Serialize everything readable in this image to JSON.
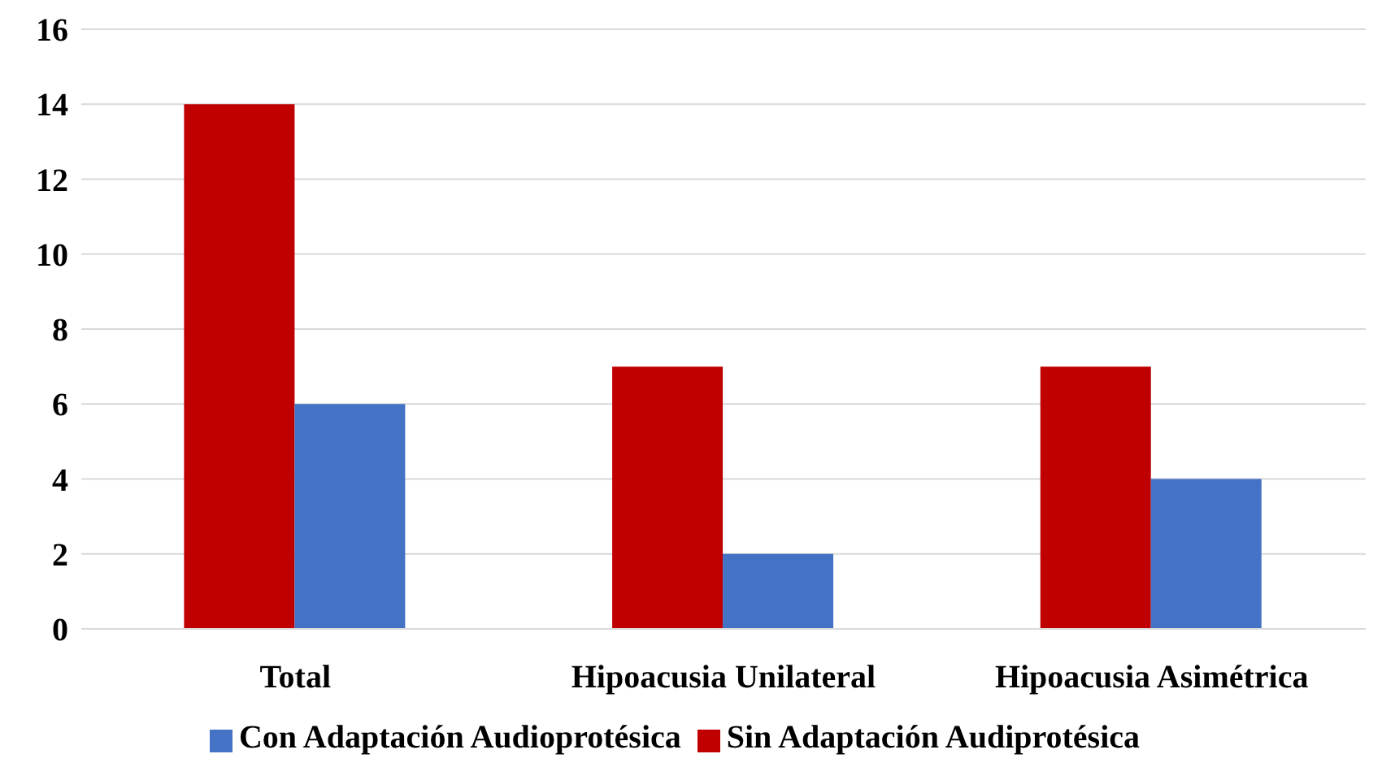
{
  "chart_data": {
    "type": "bar",
    "categories": [
      "Total",
      "Hipoacusia Unilateral",
      "Hipoacusia Asimétrica"
    ],
    "series": [
      {
        "name": "Sin Adaptación Audiprotésica",
        "color": "#c00000",
        "values": [
          14,
          7,
          7
        ]
      },
      {
        "name": "Con Adaptación Audioprotésica",
        "color": "#4472c4",
        "values": [
          6,
          2,
          4
        ]
      }
    ],
    "ylim": [
      0,
      16
    ],
    "yticks": [
      0,
      2,
      4,
      6,
      8,
      10,
      12,
      14,
      16
    ],
    "grid": "y",
    "legend": "bottom"
  }
}
